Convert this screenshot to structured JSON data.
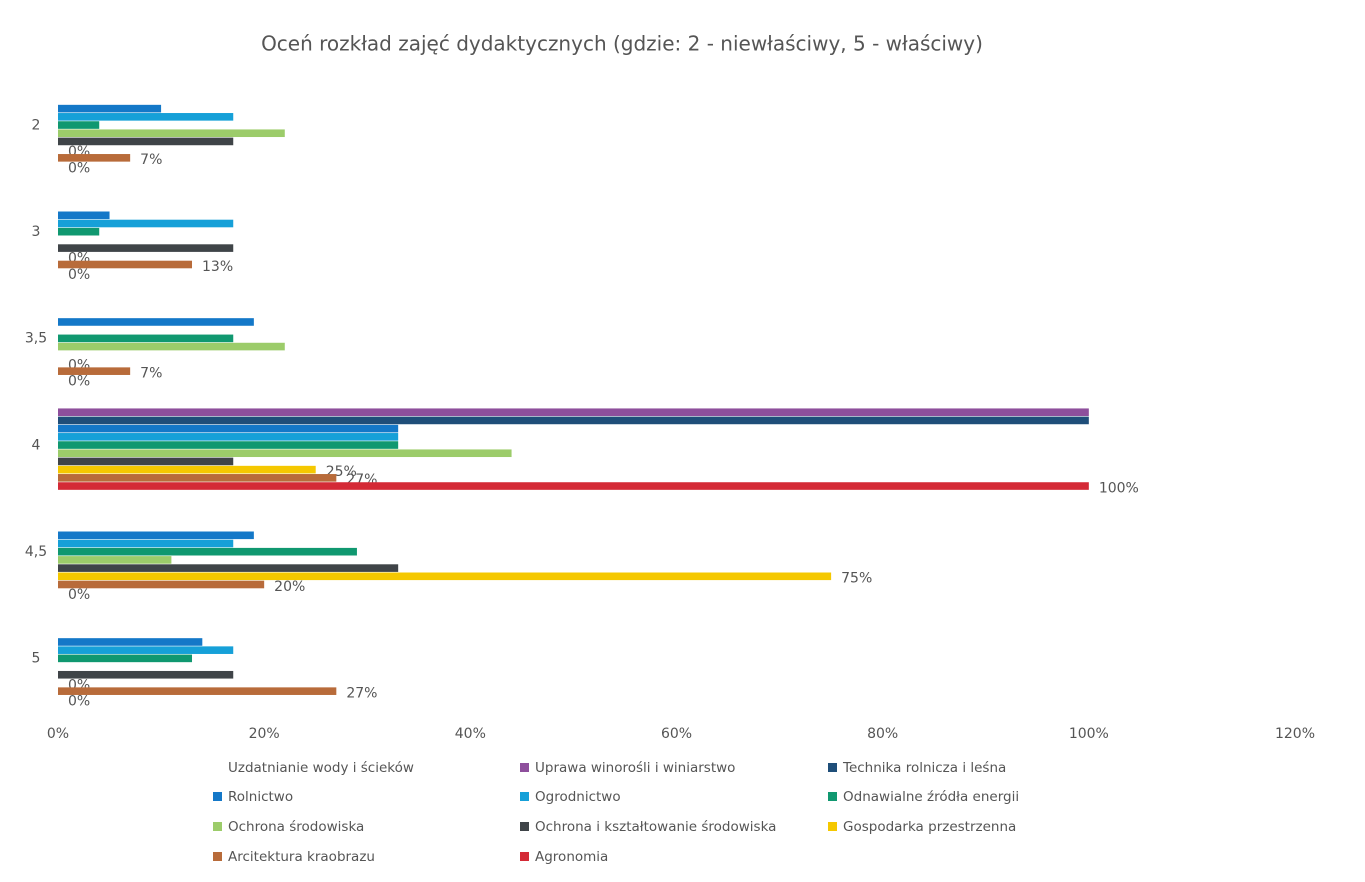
{
  "chart_data": {
    "type": "hbar",
    "title": "Oceń rozkład zajęć dydaktycznych (gdzie: 2 - niewłaściwy, 5 - właściwy)",
    "categories": [
      "2",
      "3",
      "3,5",
      "4",
      "4,5",
      "5"
    ],
    "series": [
      {
        "name": "Uzdatnianie wody i ścieków",
        "color": "#ffffff",
        "values": [
          0,
          0,
          0,
          0,
          0,
          0
        ]
      },
      {
        "name": "Uprawa winorośli i winiarstwo",
        "color": "#8e4f9c",
        "values": [
          0,
          0,
          0,
          100,
          0,
          0
        ]
      },
      {
        "name": "Technika rolnicza i leśna",
        "color": "#1f4e79",
        "values": [
          0,
          0,
          0,
          100,
          0,
          0
        ]
      },
      {
        "name": "Rolnictwo",
        "color": "#1478c8",
        "values": [
          10,
          5,
          19,
          33,
          19,
          14
        ]
      },
      {
        "name": "Ogrodnictwo",
        "color": "#16a0d8",
        "values": [
          17,
          17,
          0,
          33,
          17,
          17
        ]
      },
      {
        "name": "Odnawialne źródła energii",
        "color": "#109870",
        "values": [
          4,
          4,
          17,
          33,
          29,
          13
        ]
      },
      {
        "name": "Ochrona środowiska",
        "color": "#9ccc6a",
        "values": [
          22,
          0,
          22,
          44,
          11,
          0
        ]
      },
      {
        "name": "Ochrona i kształtowanie środowiska",
        "color": "#3f4448",
        "values": [
          17,
          17,
          0,
          17,
          33,
          17
        ]
      },
      {
        "name": "Gospodarka przestrzenna",
        "color": "#f5c800",
        "values": [
          0,
          0,
          0,
          25,
          75,
          0
        ],
        "value_labels": [
          "0%",
          "0%",
          "0%",
          "25%",
          "75%",
          "0%"
        ]
      },
      {
        "name": "Arcitektura kraobrazu",
        "color": "#b86b3a",
        "values": [
          7,
          13,
          7,
          27,
          20,
          27
        ],
        "value_labels": [
          "7%",
          "13%",
          "7%",
          "27%",
          "20%",
          "27%"
        ]
      },
      {
        "name": "Agronomia",
        "color": "#d42a36",
        "values": [
          0,
          0,
          0,
          100,
          0,
          0
        ],
        "value_labels": [
          "0%",
          "0%",
          "0%",
          "100%",
          "0%",
          "0%"
        ]
      }
    ],
    "xlim": [
      0,
      120
    ],
    "xticks": [
      {
        "value": 0,
        "label": "0%"
      },
      {
        "value": 20,
        "label": "20%"
      },
      {
        "value": 40,
        "label": "40%"
      },
      {
        "value": 60,
        "label": "60%"
      },
      {
        "value": 80,
        "label": "80%"
      },
      {
        "value": 100,
        "label": "100%"
      },
      {
        "value": 120,
        "label": "120%"
      }
    ],
    "grid": false
  }
}
